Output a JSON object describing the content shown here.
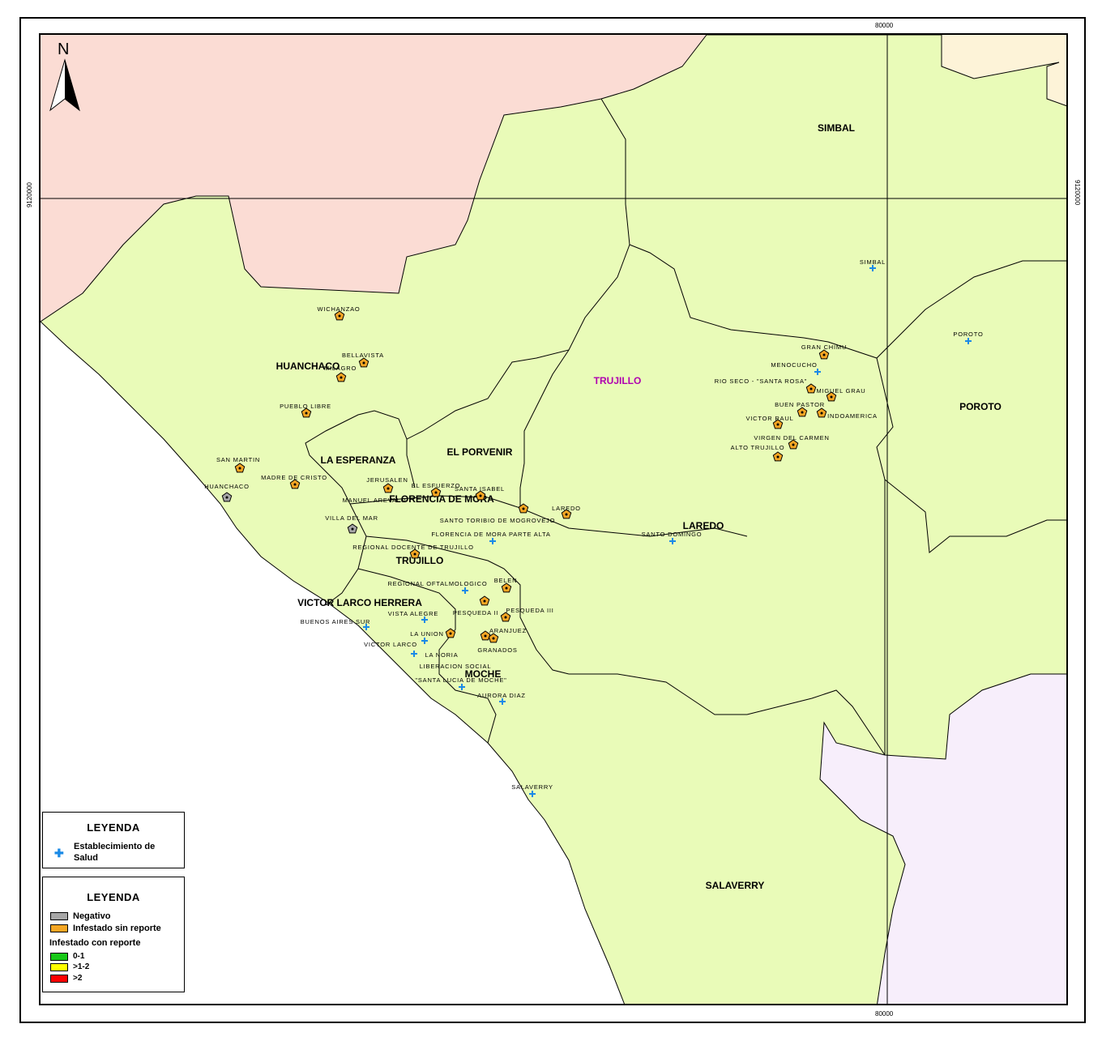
{
  "coords": {
    "top_x": "80000",
    "bottom_x": "80000",
    "left_y": "9120000",
    "right_y": "9120000"
  },
  "north_label": "N",
  "colors": {
    "district_fill": "#e9fbb8",
    "north_region": "#fbdcd4",
    "ne_region": "#fdf3d8",
    "se_region": "#f7eefb",
    "sea": "#ffffff",
    "border": "#000000",
    "negativo": "#a6a6a6",
    "infestado": "#f5a623",
    "green": "#18c818",
    "yellow": "#ffff00",
    "red": "#ff0000",
    "health_cross": "#1a8ae6",
    "trujillo_province_label": "#b000b0"
  },
  "districts": [
    {
      "name": "SIMBAL"
    },
    {
      "name": "HUANCHACO"
    },
    {
      "name": "TRUJILLO"
    },
    {
      "name": "POROTO"
    },
    {
      "name": "LA ESPERANZA"
    },
    {
      "name": "EL PORVENIR"
    },
    {
      "name": "FLORENCIA DE MORA"
    },
    {
      "name": "LAREDO"
    },
    {
      "name": "TRUJILLO"
    },
    {
      "name": "VICTOR LARCO HERRERA"
    },
    {
      "name": "MOCHE"
    },
    {
      "name": "SALAVERRY"
    }
  ],
  "places": [
    {
      "name": "WICHANZAO",
      "symbol": "infestado"
    },
    {
      "name": "BELLAVISTA",
      "symbol": "infestado"
    },
    {
      "name": "MILAGRO",
      "symbol": "infestado"
    },
    {
      "name": "PUEBLO LIBRE",
      "symbol": "infestado"
    },
    {
      "name": "SAN MARTIN",
      "symbol": "infestado"
    },
    {
      "name": "MADRE DE CRISTO",
      "symbol": "infestado"
    },
    {
      "name": "HUANCHACO",
      "symbol": "negativo"
    },
    {
      "name": "JERUSALEN",
      "symbol": "infestado"
    },
    {
      "name": "EL ESFUERZO",
      "symbol": "infestado"
    },
    {
      "name": "SANTA ISABEL",
      "symbol": "infestado"
    },
    {
      "name": "MANUEL AREVALO",
      "symbol": "none"
    },
    {
      "name": "VILLA DEL MAR",
      "symbol": "negativo"
    },
    {
      "name": "SANTO TORIBIO DE MOGROVEJO",
      "symbol": "infestado"
    },
    {
      "name": "LAREDO",
      "symbol": "infestado"
    },
    {
      "name": "FLORENCIA DE MORA PARTE ALTA",
      "symbol": "cross"
    },
    {
      "name": "REGIONAL DOCENTE DE TRUJILLO",
      "symbol": "infestado"
    },
    {
      "name": "REGIONAL OFTALMOLOGICO",
      "symbol": "cross"
    },
    {
      "name": "BELEN",
      "symbol": "infestado"
    },
    {
      "name": "VISTA ALEGRE",
      "symbol": "cross"
    },
    {
      "name": "PESQUEDA II",
      "symbol": "infestado"
    },
    {
      "name": "PESQUEDA III",
      "symbol": "infestado"
    },
    {
      "name": "BUENOS AIRES SUR",
      "symbol": "cross"
    },
    {
      "name": "LA UNION",
      "symbol": "infestado"
    },
    {
      "name": "ARANJUEZ",
      "symbol": "infestado"
    },
    {
      "name": "VICTOR LARCO",
      "symbol": "cross"
    },
    {
      "name": "LA NORIA",
      "symbol": "cross"
    },
    {
      "name": "GRANADOS",
      "symbol": "infestado"
    },
    {
      "name": "LIBERACION SOCIAL",
      "symbol": "none"
    },
    {
      "name": "\"SANTA LUCIA DE MOCHE\"",
      "symbol": "cross"
    },
    {
      "name": "AURORA DIAZ",
      "symbol": "cross"
    },
    {
      "name": "SALAVERRY",
      "symbol": "cross"
    },
    {
      "name": "SANTO DOMINGO",
      "symbol": "cross"
    },
    {
      "name": "SIMBAL",
      "symbol": "cross"
    },
    {
      "name": "POROTO",
      "symbol": "cross"
    },
    {
      "name": "GRAN CHIMU",
      "symbol": "infestado"
    },
    {
      "name": "MENOCUCHO",
      "symbol": "cross"
    },
    {
      "name": "RIO SECO - \"SANTA ROSA\"",
      "symbol": "infestado"
    },
    {
      "name": "MIGUEL GRAU",
      "symbol": "infestado"
    },
    {
      "name": "BUEN PASTOR",
      "symbol": "infestado"
    },
    {
      "name": "INDOAMERICA",
      "symbol": "infestado"
    },
    {
      "name": "VICTOR RAUL",
      "symbol": "infestado"
    },
    {
      "name": "VIRGEN DEL CARMEN",
      "symbol": "infestado"
    },
    {
      "name": "ALTO TRUJILLO",
      "symbol": "infestado"
    }
  ],
  "legend1": {
    "title": "LEYENDA",
    "item_line1": "Establecimiento de",
    "item_line2": "Salud"
  },
  "legend2": {
    "title": "LEYENDA",
    "negativo": "Negativo",
    "infestado_sin": "Infestado sin reporte",
    "subtitle": "Infestado con reporte",
    "range1": "0-1",
    "range2": ">1-2",
    "range3": ">2"
  }
}
